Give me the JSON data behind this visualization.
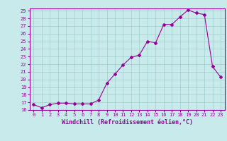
{
  "x": [
    0,
    1,
    2,
    3,
    4,
    5,
    6,
    7,
    8,
    9,
    10,
    11,
    12,
    13,
    14,
    15,
    16,
    17,
    18,
    19,
    20,
    21,
    22,
    23
  ],
  "y": [
    16.7,
    16.3,
    16.7,
    16.9,
    16.9,
    16.8,
    16.8,
    16.8,
    17.3,
    19.5,
    20.7,
    21.9,
    22.9,
    23.2,
    25.0,
    24.8,
    27.2,
    27.2,
    28.2,
    29.1,
    28.7,
    28.5,
    21.7,
    20.3
  ],
  "line_color": "#990099",
  "marker": "D",
  "marker_size": 2.0,
  "bg_color": "#c8eaea",
  "grid_color": "#a0cccc",
  "xlabel": "Windchill (Refroidissement éolien,°C)",
  "xlabel_color": "#990099",
  "tick_color": "#990099",
  "ylim": [
    16,
    29
  ],
  "yticks": [
    16,
    17,
    18,
    19,
    20,
    21,
    22,
    23,
    24,
    25,
    26,
    27,
    28,
    29
  ],
  "xticks": [
    0,
    1,
    2,
    3,
    4,
    5,
    6,
    7,
    8,
    9,
    10,
    11,
    12,
    13,
    14,
    15,
    16,
    17,
    18,
    19,
    20,
    21,
    22,
    23
  ],
  "xlim": [
    -0.5,
    23.5
  ],
  "spine_color": "#990099",
  "axis_bg": "#c8eaea",
  "xlabel_fontsize": 6.0,
  "tick_fontsize": 5.0
}
